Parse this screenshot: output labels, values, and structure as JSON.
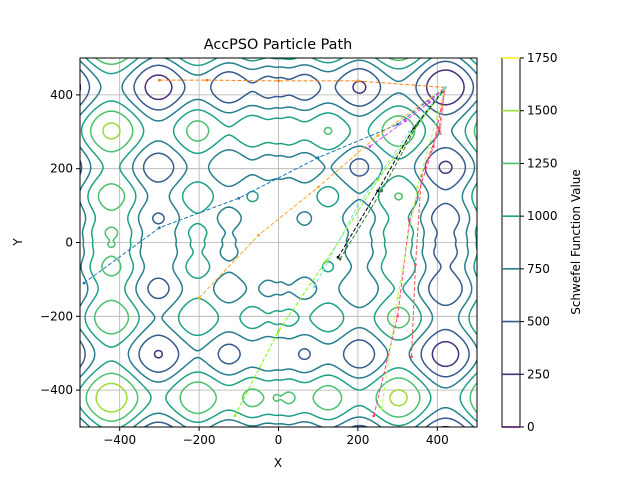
{
  "chart_data": {
    "type": "contour",
    "title": "AccPSO Particle Path",
    "xlabel": "X",
    "ylabel": "Y",
    "xlim": [
      -500,
      500
    ],
    "ylim": [
      -500,
      500
    ],
    "xticks": [
      -400,
      -200,
      0,
      200,
      400
    ],
    "yticks": [
      -400,
      -200,
      0,
      200,
      400
    ],
    "grid": true,
    "contour_function": "Schwefel",
    "contour_levels": [
      250,
      500,
      750,
      1000,
      1250,
      1500,
      1750
    ],
    "colorbar": {
      "label": "Schwefel Function Value",
      "ticks": [
        0,
        250,
        500,
        750,
        1000,
        1250,
        1500,
        1750
      ],
      "colors": [
        "#440154",
        "#46327e",
        "#365c8d",
        "#277f8e",
        "#1fa187",
        "#4ac16d",
        "#a0da39",
        "#fde725"
      ]
    },
    "paths": [
      {
        "color": "#ff7f0e",
        "points": [
          [
            -300,
            440
          ],
          [
            -180,
            440
          ],
          [
            0,
            438
          ],
          [
            200,
            438
          ],
          [
            420,
            420
          ]
        ]
      },
      {
        "color": "#1f77b4",
        "points": [
          [
            -490,
            -110
          ],
          [
            -300,
            40
          ],
          [
            -100,
            120
          ],
          [
            100,
            230
          ],
          [
            300,
            320
          ],
          [
            420,
            420
          ]
        ]
      },
      {
        "color": "#ffa726",
        "points": [
          [
            -200,
            -150
          ],
          [
            -50,
            20
          ],
          [
            100,
            150
          ],
          [
            250,
            290
          ],
          [
            420,
            420
          ]
        ]
      },
      {
        "color": "#76ff03",
        "points": [
          [
            -110,
            -470
          ],
          [
            0,
            -240
          ],
          [
            120,
            -50
          ],
          [
            250,
            170
          ],
          [
            420,
            420
          ]
        ]
      },
      {
        "color": "#000000",
        "points": [
          [
            150,
            -40
          ],
          [
            250,
            140
          ],
          [
            340,
            310
          ],
          [
            420,
            420
          ]
        ]
      },
      {
        "color": "#2e7d32",
        "points": [
          [
            155,
            -45
          ],
          [
            260,
            140
          ],
          [
            350,
            320
          ],
          [
            415,
            410
          ]
        ]
      },
      {
        "color": "#ef5350",
        "points": [
          [
            335,
            -310
          ],
          [
            345,
            -60
          ],
          [
            360,
            180
          ],
          [
            405,
            310
          ],
          [
            420,
            420
          ]
        ]
      },
      {
        "color": "#ff8a80",
        "points": [
          [
            408,
            295
          ],
          [
            412,
            360
          ],
          [
            420,
            420
          ]
        ]
      },
      {
        "color": "#ff4081",
        "points": [
          [
            240,
            -470
          ],
          [
            300,
            -200
          ],
          [
            330,
            60
          ],
          [
            390,
            260
          ],
          [
            420,
            420
          ]
        ]
      },
      {
        "color": "#e040fb",
        "points": [
          [
            230,
            260
          ],
          [
            320,
            330
          ],
          [
            380,
            380
          ],
          [
            420,
            420
          ]
        ]
      },
      {
        "color": "#b2ff59",
        "points": [
          [
            260,
            -450
          ],
          [
            300,
            -150
          ],
          [
            350,
            150
          ],
          [
            420,
            420
          ]
        ]
      },
      {
        "color": "#80deea",
        "points": [
          [
            90,
            -120
          ],
          [
            200,
            100
          ],
          [
            330,
            300
          ],
          [
            420,
            420
          ]
        ]
      }
    ]
  }
}
